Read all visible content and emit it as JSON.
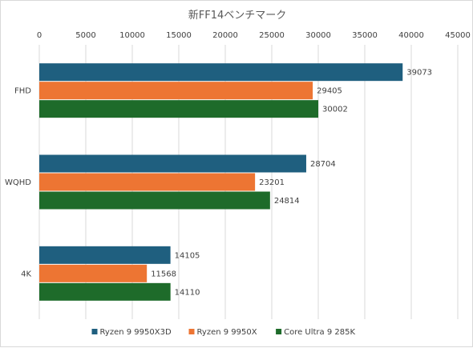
{
  "chart_data": {
    "type": "bar",
    "orientation": "horizontal",
    "title": "新FF14ベンチマーク",
    "xlabel": "",
    "ylabel": "",
    "xlim": [
      0,
      45000
    ],
    "x_ticks": [
      "0",
      "5000",
      "10000",
      "15000",
      "20000",
      "25000",
      "30000",
      "35000",
      "40000",
      "45000"
    ],
    "x_axis_position": "top",
    "grid": true,
    "legend_position": "bottom",
    "categories": [
      "FHD",
      "WQHD",
      "4K"
    ],
    "series": [
      {
        "name": "Ryzen 9 9950X3D",
        "color": "#1f5f7f",
        "values": [
          39073,
          28704,
          14105
        ]
      },
      {
        "name": "Ryzen 9 9950X",
        "color": "#ed7533",
        "values": [
          29405,
          23201,
          11568
        ]
      },
      {
        "name": "Core Ultra 9 285K",
        "color": "#1e6b2a",
        "values": [
          30002,
          24814,
          14110
        ]
      }
    ]
  }
}
